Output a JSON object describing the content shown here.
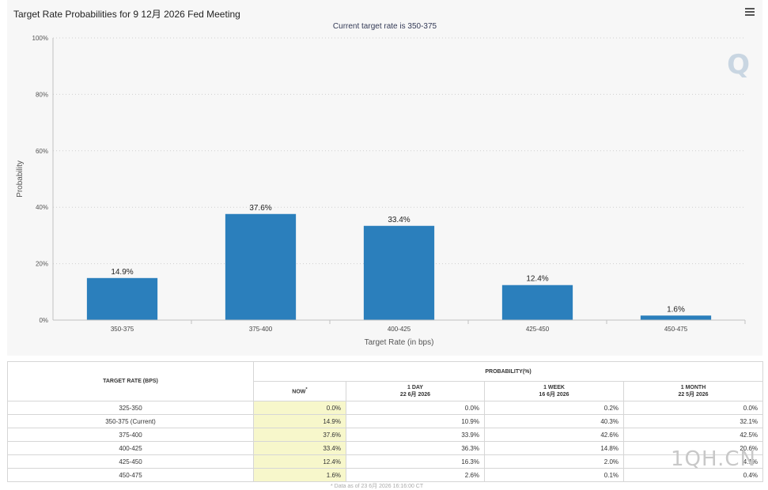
{
  "chart_data": {
    "type": "bar",
    "title": "Target Rate Probabilities for 9 12月 2026 Fed Meeting",
    "subtitle": "Current target rate is 350-375",
    "xlabel": "Target Rate (in bps)",
    "ylabel": "Probability",
    "categories": [
      "350-375",
      "375-400",
      "400-425",
      "425-450",
      "450-475"
    ],
    "values": [
      14.9,
      37.6,
      33.4,
      12.4,
      1.6
    ],
    "data_labels": [
      "14.9%",
      "37.6%",
      "33.4%",
      "12.4%",
      "1.6%"
    ],
    "yticks": [
      0,
      20,
      40,
      60,
      80,
      100
    ],
    "ytick_labels": [
      "0%",
      "20%",
      "40%",
      "60%",
      "80%",
      "100%"
    ],
    "ylim": [
      0,
      100
    ],
    "grid": true,
    "legend": "none",
    "colors": {
      "bar": "#2b7fbc",
      "grid": "#cfcfcf",
      "axis": "#c0c0c0"
    }
  },
  "watermark_glyph": "Q",
  "table": {
    "header_target": "TARGET RATE (BPS)",
    "header_prob": "PROBABILITY(%)",
    "columns": [
      {
        "label": "NOW",
        "sub": "",
        "mark": "*"
      },
      {
        "label": "1 DAY",
        "sub": "22 6月 2026"
      },
      {
        "label": "1 WEEK",
        "sub": "16 6月 2026"
      },
      {
        "label": "1 MONTH",
        "sub": "22 5月 2026"
      }
    ],
    "rows": [
      {
        "rate": "325-350",
        "vals": [
          "0.0%",
          "0.0%",
          "0.2%",
          "0.0%"
        ]
      },
      {
        "rate": "350-375 (Current)",
        "vals": [
          "14.9%",
          "10.9%",
          "40.3%",
          "32.1%"
        ]
      },
      {
        "rate": "375-400",
        "vals": [
          "37.6%",
          "33.9%",
          "42.6%",
          "42.5%"
        ]
      },
      {
        "rate": "400-425",
        "vals": [
          "33.4%",
          "36.3%",
          "14.8%",
          "20.6%"
        ]
      },
      {
        "rate": "425-450",
        "vals": [
          "12.4%",
          "16.3%",
          "2.0%",
          "4.1%"
        ]
      },
      {
        "rate": "450-475",
        "vals": [
          "1.6%",
          "2.6%",
          "0.1%",
          "0.4%"
        ]
      }
    ],
    "footnote": "* Data as of 23 6月 2026 16:16:00 CT"
  },
  "brand_watermark": "1QH.CN"
}
